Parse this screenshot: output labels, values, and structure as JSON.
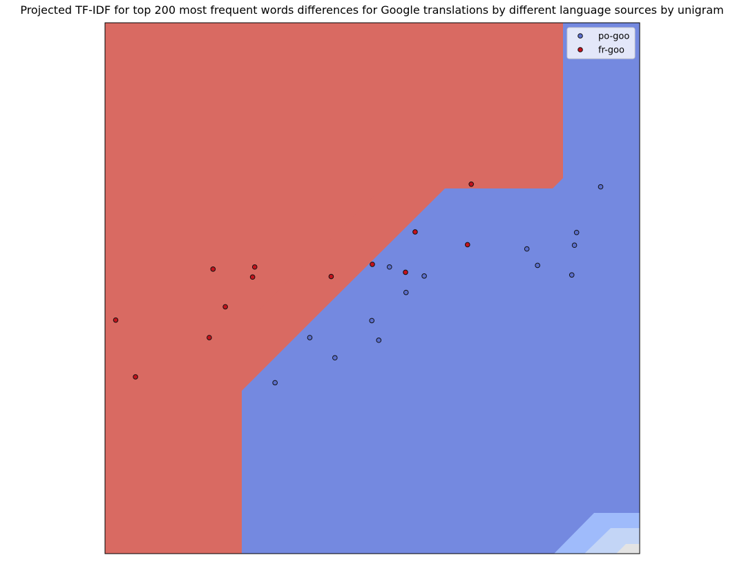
{
  "chart_data": {
    "type": "scatter",
    "title": "Projected TF-IDF for top 200 most frequent words differences for Google translations by different language sources by unigram",
    "xlabel": "",
    "ylabel": "",
    "xlim": [
      0,
      100
    ],
    "ylim": [
      0,
      100
    ],
    "axis_ticks": false,
    "grid": false,
    "legend_position": "top-right",
    "background_regions": {
      "description": "decision-boundary contour fill, red region = fr-goo side, blue region = po-goo side",
      "colors": [
        "#d96a62",
        "#f4a288",
        "#f6cdbd",
        "#e3e3e3",
        "#c3d5f6",
        "#9fbbfb",
        "#7489e0"
      ]
    },
    "series": [
      {
        "name": "po-goo",
        "color": "#5b6fcf",
        "points": [
          [
            92.7,
            69.1
          ],
          [
            88.2,
            60.5
          ],
          [
            87.8,
            58.1
          ],
          [
            78.9,
            57.4
          ],
          [
            80.9,
            54.3
          ],
          [
            87.3,
            52.5
          ],
          [
            53.2,
            54.0
          ],
          [
            59.7,
            52.3
          ],
          [
            56.3,
            49.2
          ],
          [
            49.9,
            43.9
          ],
          [
            51.2,
            40.2
          ],
          [
            38.3,
            40.7
          ],
          [
            43.0,
            36.9
          ],
          [
            31.8,
            32.2
          ]
        ]
      },
      {
        "name": "fr-goo",
        "color": "#c4121c",
        "points": [
          [
            68.5,
            69.6
          ],
          [
            58.0,
            60.6
          ],
          [
            67.8,
            58.2
          ],
          [
            50.0,
            54.5
          ],
          [
            56.2,
            53.0
          ],
          [
            42.3,
            52.2
          ],
          [
            28.0,
            54.0
          ],
          [
            27.6,
            52.1
          ],
          [
            20.2,
            53.6
          ],
          [
            22.5,
            46.5
          ],
          [
            19.5,
            40.7
          ],
          [
            2.0,
            44.0
          ],
          [
            5.7,
            33.3
          ]
        ]
      }
    ]
  }
}
